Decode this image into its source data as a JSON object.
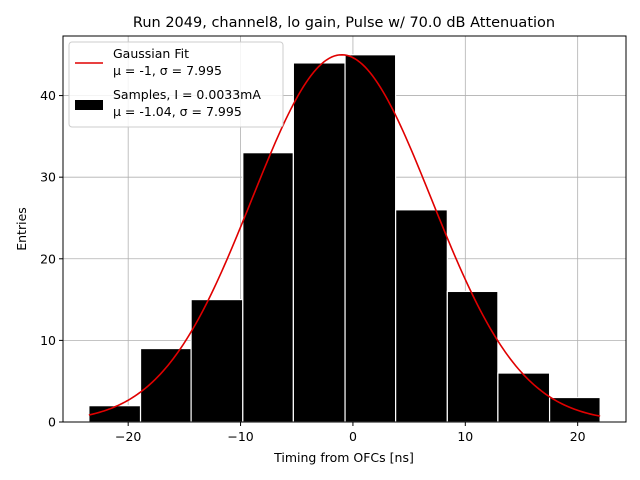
{
  "chart_data": {
    "type": "bar",
    "title": "Run 2049, channel8, lo gain, Pulse w/ 70.0 dB Attenuation",
    "xlabel": "Timing from OFCs [ns]",
    "ylabel": "Entries",
    "xlim": [
      -25.8,
      24.3
    ],
    "ylim": [
      0,
      47.3
    ],
    "xticks": [
      -20,
      -10,
      0,
      10,
      20
    ],
    "xtick_labels": [
      "−20",
      "−10",
      "0",
      "10",
      "20"
    ],
    "yticks": [
      0,
      10,
      20,
      30,
      40
    ],
    "ytick_labels": [
      "0",
      "10",
      "20",
      "30",
      "40"
    ],
    "grid": true,
    "legend_position": "upper-left",
    "bin_edges": [
      -23.5,
      -18.9,
      -14.4,
      -9.8,
      -5.3,
      -0.7,
      3.8,
      8.4,
      12.9,
      17.5,
      22.0
    ],
    "counts": [
      2,
      9,
      15,
      33,
      44,
      45,
      26,
      16,
      6,
      3
    ],
    "histogram": {
      "name_line1": "Samples, I = 0.0033mA",
      "name_line2": "μ = -1.04, σ = 7.995",
      "color": "#000000",
      "edgecolor": "#ffffff"
    },
    "fit": {
      "name_line1": "Gaussian Fit",
      "name_line2": "μ = -1, σ = 7.995",
      "mu": -1,
      "sigma": 7.995,
      "amplitude": 45,
      "x_range": [
        -23.5,
        22.0
      ],
      "color": "#e00000"
    }
  }
}
